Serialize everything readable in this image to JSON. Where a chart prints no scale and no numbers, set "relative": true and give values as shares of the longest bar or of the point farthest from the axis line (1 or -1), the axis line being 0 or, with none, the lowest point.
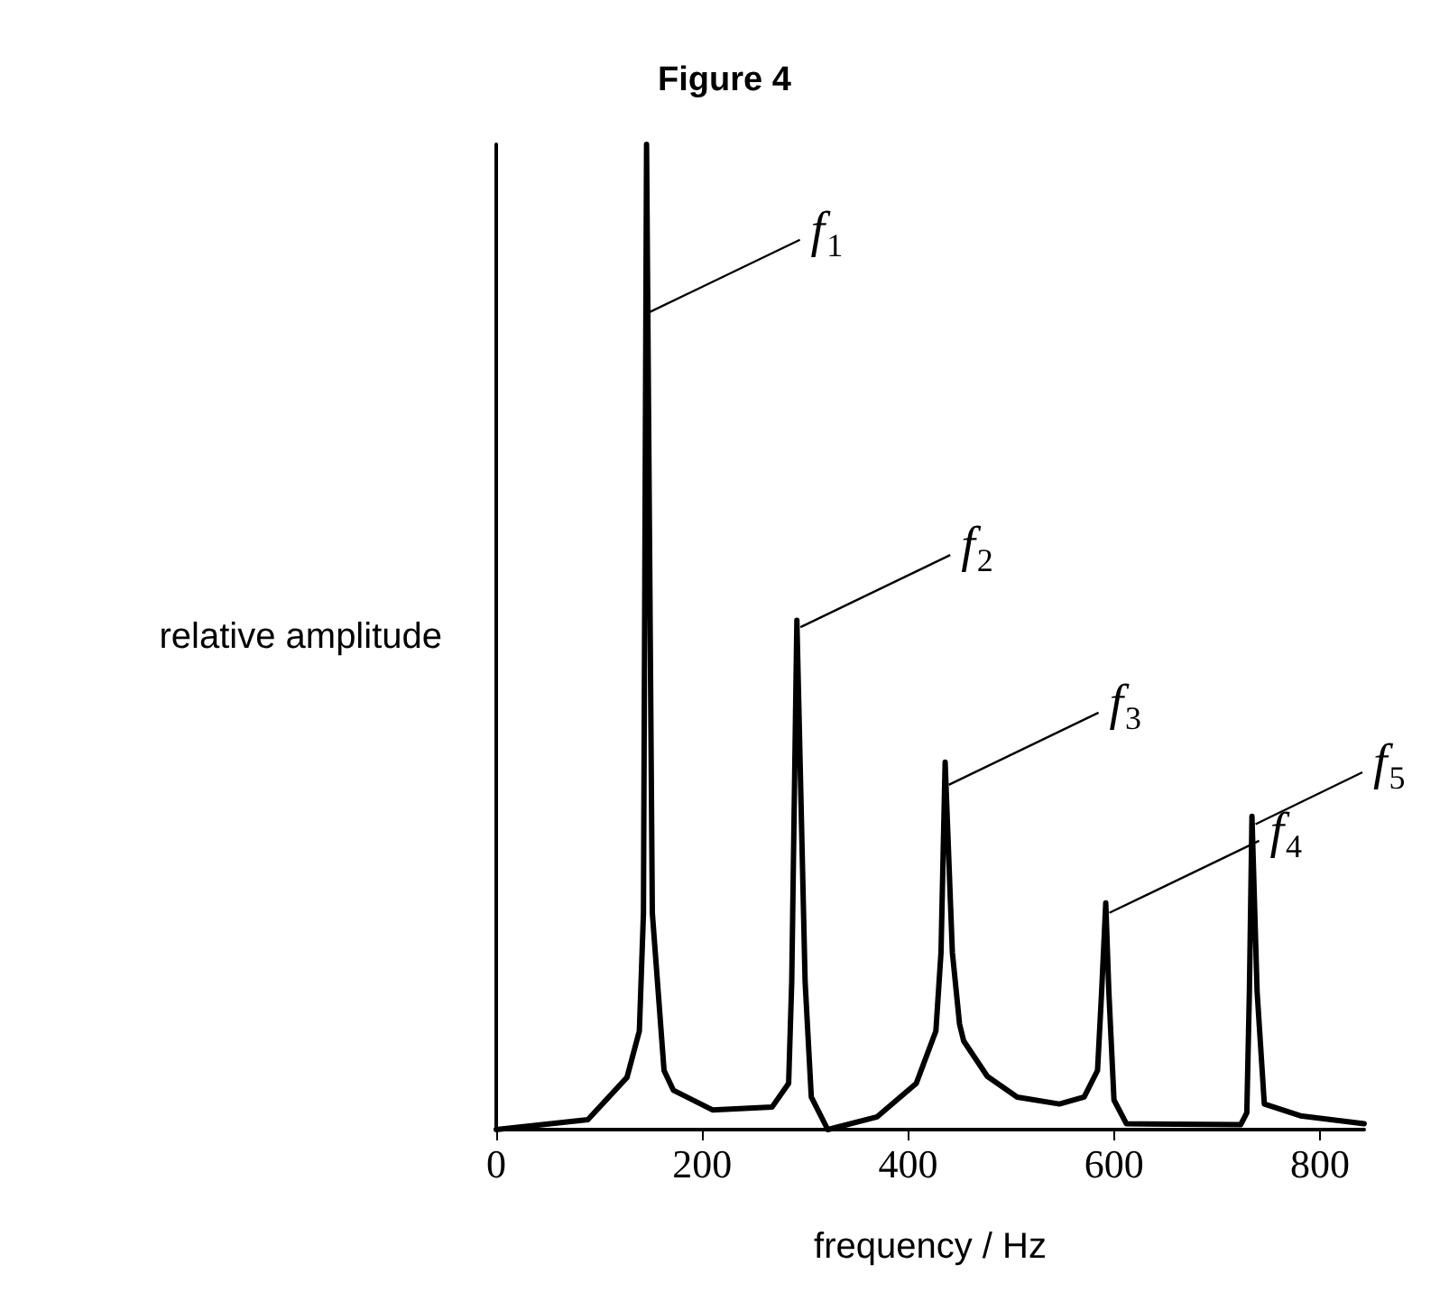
{
  "chart_data": {
    "type": "line",
    "title": "Figure 4",
    "xlabel": "frequency / Hz",
    "ylabel": "relative amplitude",
    "relative": true,
    "xlim": [
      0,
      843
    ],
    "xticks": [
      0,
      200,
      400,
      600,
      800
    ],
    "grid": false,
    "marker": "none",
    "line_style": "solid",
    "series": [
      {
        "color": "#000000",
        "x": [
          0,
          89,
          127,
          139,
          143,
          146,
          151.6,
          163,
          172,
          210,
          268,
          284,
          287,
          292,
          300,
          306,
          322,
          370,
          408,
          427,
          432,
          436,
          443,
          450,
          454,
          477,
          506,
          547,
          571,
          584,
          588,
          592,
          595,
          600,
          612,
          723,
          729,
          731.5,
          734,
          739,
          746,
          781,
          843
        ],
        "values": [
          0,
          0.01,
          0.053,
          0.1,
          0.22,
          1,
          0.22,
          0.06,
          0.04,
          0.02,
          0.023,
          0.047,
          0.15,
          0.517,
          0.15,
          0.033,
          0,
          0.013,
          0.047,
          0.1,
          0.18,
          0.373,
          0.18,
          0.107,
          0.09,
          0.054,
          0.033,
          0.026,
          0.033,
          0.06,
          0.14,
          0.23,
          0.14,
          0.03,
          0.006,
          0.005,
          0.017,
          0.14,
          0.318,
          0.14,
          0.026,
          0.014,
          0.006
        ]
      }
    ],
    "annotations": [
      {
        "text": "f$_{1}$",
        "x": 146,
        "y": 0.83
      },
      {
        "text": "f$_{2}$",
        "x": 292,
        "y": 0.51
      },
      {
        "text": "f$_{3}$",
        "x": 436,
        "y": 0.35
      },
      {
        "text": "f$_{4}$",
        "x": 592,
        "y": 0.22
      },
      {
        "text": "f$_{5}$",
        "x": 734,
        "y": 0.31
      }
    ]
  }
}
